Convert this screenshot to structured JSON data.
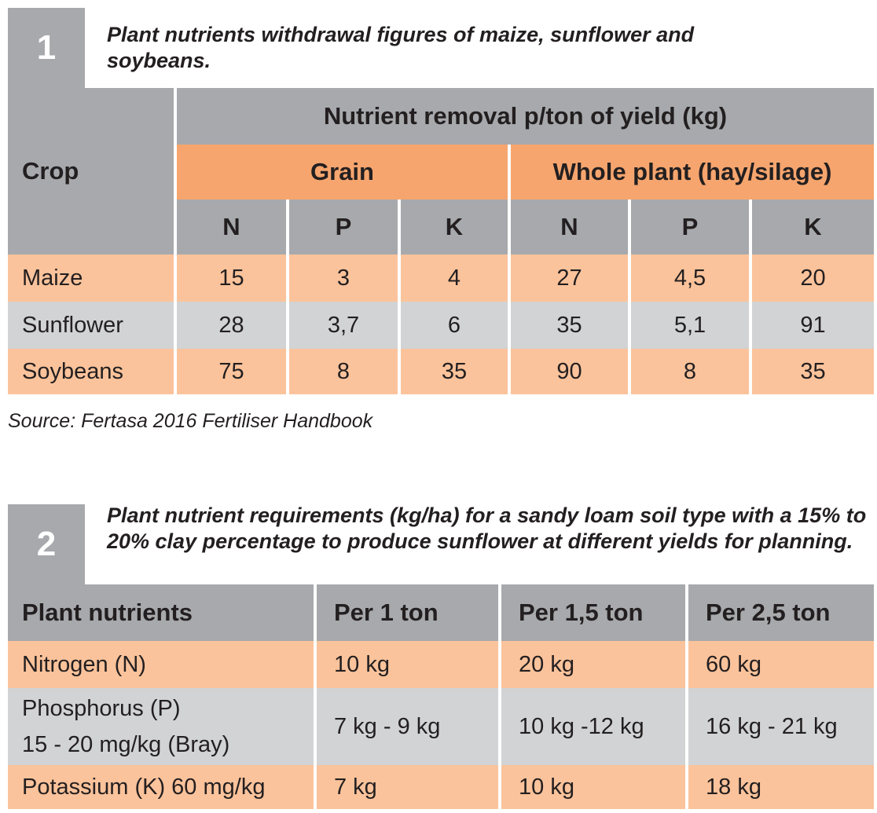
{
  "table1": {
    "number": "1",
    "caption": "Plant nutrients withdrawal figures of maize, sunflower and soybeans.",
    "crop_header": "Crop",
    "group_header": "Nutrient removal p/ton of yield (kg)",
    "grain_header": "Grain",
    "whole_header": "Whole plant (hay/silage)",
    "sub_headers": [
      "N",
      "P",
      "K",
      "N",
      "P",
      "K"
    ],
    "rows": [
      {
        "crop": "Maize",
        "values": [
          "15",
          "3",
          "4",
          "27",
          "4,5",
          "20"
        ]
      },
      {
        "crop": "Sunflower",
        "values": [
          "28",
          "3,7",
          "6",
          "35",
          "5,1",
          "91"
        ]
      },
      {
        "crop": "Soybeans",
        "values": [
          "75",
          "8",
          "35",
          "90",
          "8",
          "35"
        ]
      }
    ],
    "source": "Source: Fertasa 2016 Fertiliser Handbook"
  },
  "table2": {
    "number": "2",
    "caption": "Plant nutrient requirements (kg/ha) for a sandy loam soil type with a 15% to 20% clay percentage to produce sunflower at different yields for planning.",
    "headers": [
      "Plant nutrients",
      "Per 1 ton",
      "Per 1,5 ton",
      "Per 2,5 ton"
    ],
    "rows": [
      {
        "nutrient": [
          "Nitrogen (N)"
        ],
        "values": [
          "10 kg",
          "20 kg",
          "60 kg"
        ]
      },
      {
        "nutrient": [
          "Phosphorus (P)",
          "15 - 20 mg/kg (Bray)"
        ],
        "values": [
          "7 kg - 9 kg",
          "10 kg -12 kg",
          "16 kg - 21 kg"
        ]
      },
      {
        "nutrient": [
          "Potassium (K) 60 mg/kg"
        ],
        "values": [
          "7 kg",
          "10 kg",
          "18 kg"
        ]
      }
    ]
  },
  "colors": {
    "header_gray": "#a7a9ac",
    "light_gray": "#d1d3d4",
    "orange": "#f6a56e",
    "peach": "#fbc39b"
  }
}
